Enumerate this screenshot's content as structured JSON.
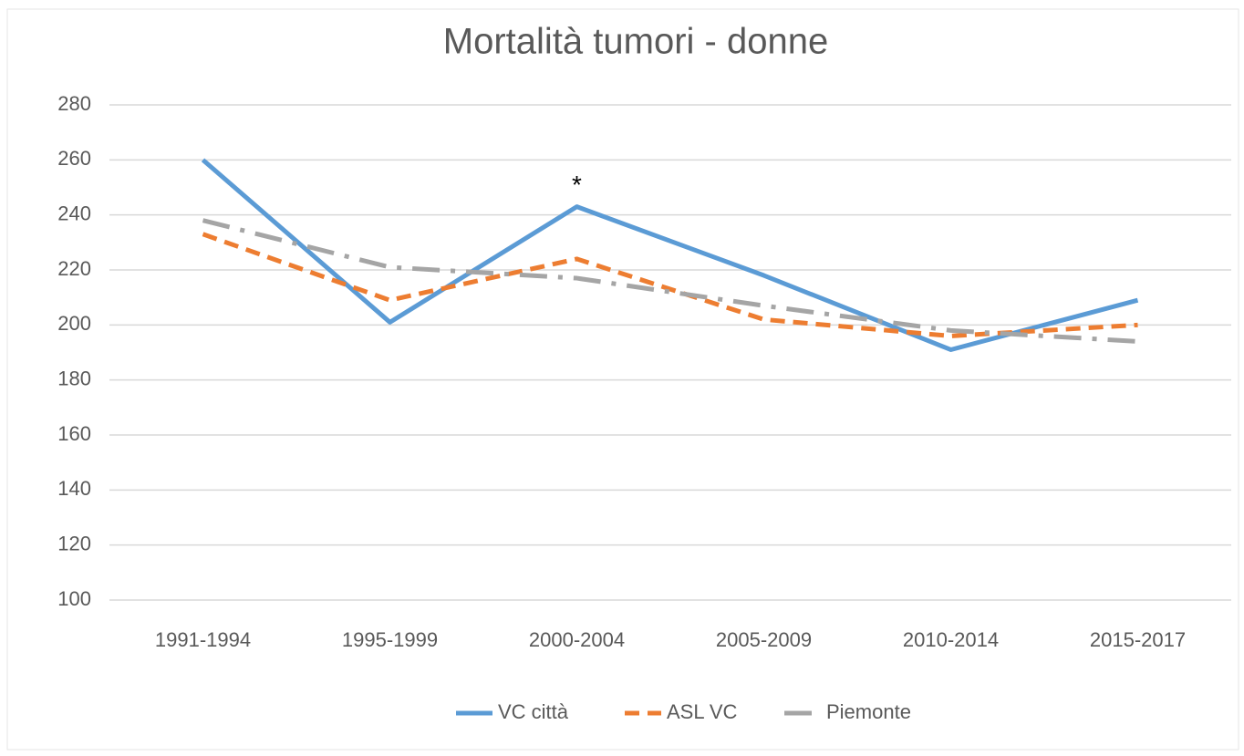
{
  "chart_data": {
    "type": "line",
    "title": "Mortalità tumori - donne",
    "categories": [
      "1991-1994",
      "1995-1999",
      "2000-2004",
      "2005-2009",
      "2010-2014",
      "2015-2017"
    ],
    "series": [
      {
        "name": "VC città",
        "color": "#5b9bd5",
        "dash": "solid",
        "values": [
          260,
          201,
          243,
          218,
          191,
          209
        ]
      },
      {
        "name": "ASL VC",
        "color": "#ed7d31",
        "dash": "dash",
        "values": [
          233,
          209,
          224,
          202,
          196,
          200
        ]
      },
      {
        "name": "Piemonte",
        "color": "#a5a5a5",
        "dash": "dashdot",
        "values": [
          238,
          221,
          217,
          207,
          198,
          194
        ]
      }
    ],
    "ylim": [
      100,
      280
    ],
    "yticks": [
      100,
      120,
      140,
      160,
      180,
      200,
      220,
      240,
      260,
      280
    ],
    "grid": true,
    "legend": "bottom",
    "annotations": [
      {
        "text": "*",
        "x": "2000-2004",
        "series": "VC città"
      }
    ]
  }
}
